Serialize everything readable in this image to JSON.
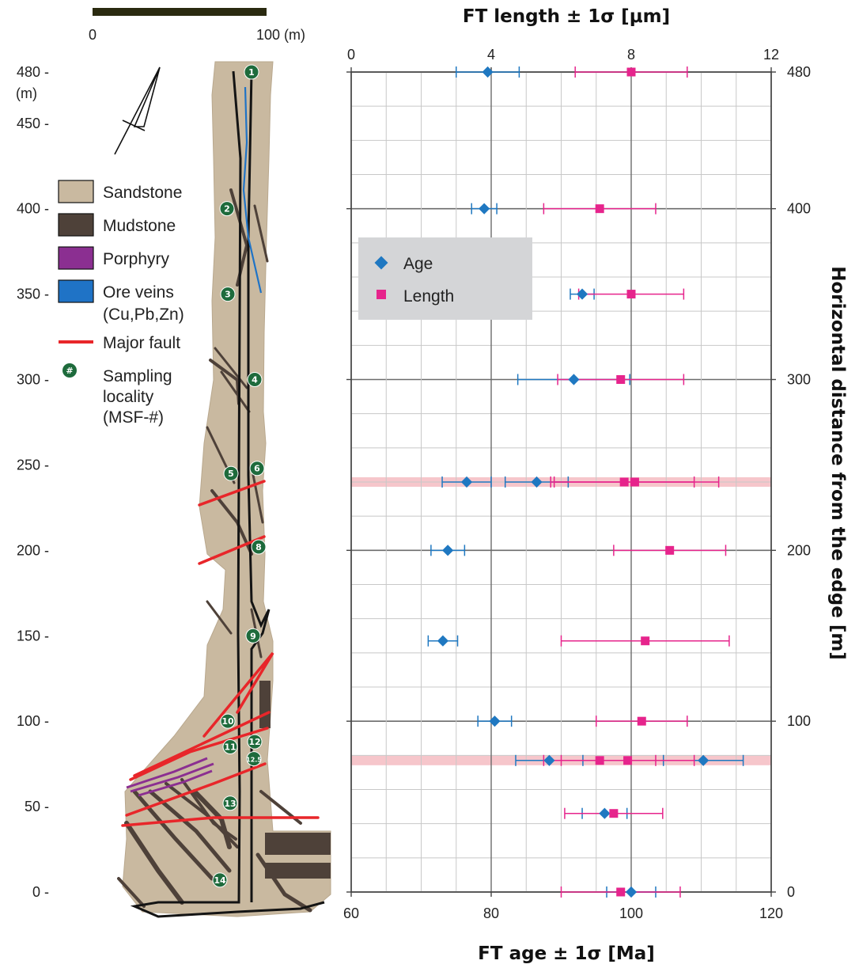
{
  "map": {
    "scale_bar": {
      "start": "0",
      "end": "100 (m)"
    },
    "y_axis_ticks": [
      {
        "label": "480 -",
        "value": 480
      },
      {
        "label": "450 -",
        "value": 450
      },
      {
        "label": "400 -",
        "value": 400
      },
      {
        "label": "350 -",
        "value": 350
      },
      {
        "label": "300 -",
        "value": 300
      },
      {
        "label": "250 -",
        "value": 250
      },
      {
        "label": "200 -",
        "value": 200
      },
      {
        "label": "150 -",
        "value": 150
      },
      {
        "label": "100 -",
        "value": 100
      },
      {
        "label": "50 -",
        "value": 50
      },
      {
        "label": "0 -",
        "value": 0
      }
    ],
    "y_axis_unit": "(m)",
    "legend": [
      {
        "key": "sandstone",
        "label": "Sandstone",
        "color": "#c9b9a0"
      },
      {
        "key": "mudstone",
        "label": "Mudstone",
        "color": "#4e4139"
      },
      {
        "key": "porphyry",
        "label": "Porphyry",
        "color": "#8b2f91"
      },
      {
        "key": "ore",
        "label": "Ore veins",
        "label2": "(Cu,Pb,Zn)",
        "color": "#1f73c6"
      },
      {
        "key": "fault",
        "label": "Major fault",
        "color": "#e8262a"
      },
      {
        "key": "sampling",
        "label": "Sampling",
        "label2": "locality",
        "label3": "(MSF-#)",
        "symbol": "#",
        "color": "#1e6b3c"
      }
    ],
    "samples": [
      {
        "id": "1",
        "distance": 480
      },
      {
        "id": "2",
        "distance": 400
      },
      {
        "id": "3",
        "distance": 350
      },
      {
        "id": "4",
        "distance": 300
      },
      {
        "id": "5",
        "distance": 245
      },
      {
        "id": "6",
        "distance": 248
      },
      {
        "id": "8",
        "distance": 202
      },
      {
        "id": "9",
        "distance": 150
      },
      {
        "id": "10",
        "distance": 100
      },
      {
        "id": "11",
        "distance": 85
      },
      {
        "id": "12",
        "distance": 88
      },
      {
        "id": "12.5",
        "distance": 78
      },
      {
        "id": "13",
        "distance": 52
      },
      {
        "id": "14",
        "distance": 7
      }
    ]
  },
  "chart_data": {
    "type": "scatter",
    "title_top": "FT length ± 1σ [μm]",
    "xlabel": "FT age ± 1σ [Ma]",
    "ylabel": "Horizontal distance from the edge [m]",
    "x_age_lim": [
      60,
      120
    ],
    "x_age_ticks": [
      "60",
      "80",
      "100",
      "120"
    ],
    "x_length_lim": [
      0,
      12
    ],
    "x_length_ticks": [
      "0",
      "4",
      "8",
      "12"
    ],
    "ylim": [
      0,
      480
    ],
    "y_ticks": [
      "0",
      "100",
      "200",
      "300",
      "400",
      "480"
    ],
    "grid": true,
    "legend_position": "top-left",
    "highlight_bands": [
      240,
      77
    ],
    "series": [
      {
        "name": "Age",
        "color": "#1f78c1",
        "marker": "diamond",
        "points": [
          {
            "y": 480,
            "x": 79.5,
            "err": 4.5
          },
          {
            "y": 400,
            "x": 79.0,
            "err": 1.8
          },
          {
            "y": 350,
            "x": 93.0,
            "err": 1.7
          },
          {
            "y": 300,
            "x": 91.8,
            "err": 8.0
          },
          {
            "y": 240,
            "x": 76.5,
            "err": 3.5
          },
          {
            "y": 240,
            "x": 86.5,
            "err": 4.5
          },
          {
            "y": 200,
            "x": 73.8,
            "err": 2.4
          },
          {
            "y": 147,
            "x": 73.1,
            "err": 2.1
          },
          {
            "y": 100,
            "x": 80.5,
            "err": 2.4
          },
          {
            "y": 77,
            "x": 88.3,
            "err": 4.8
          },
          {
            "y": 77,
            "x": 110.3,
            "err": 5.7
          },
          {
            "y": 46,
            "x": 96.2,
            "err": 3.2
          },
          {
            "y": 0,
            "x": 100.0,
            "err": 3.5
          }
        ]
      },
      {
        "name": "Length",
        "color": "#e6248c",
        "marker": "square",
        "points": [
          {
            "y": 480,
            "x": 8.0,
            "err": 1.6
          },
          {
            "y": 400,
            "x": 7.1,
            "err": 1.6
          },
          {
            "y": 350,
            "x": 8.0,
            "err": 1.5
          },
          {
            "y": 300,
            "x": 7.7,
            "err": 1.8
          },
          {
            "y": 240,
            "x": 7.8,
            "err": 2.0
          },
          {
            "y": 240,
            "x": 8.1,
            "err": 2.4
          },
          {
            "y": 200,
            "x": 9.1,
            "err": 1.6
          },
          {
            "y": 147,
            "x": 8.4,
            "err": 2.4
          },
          {
            "y": 100,
            "x": 8.3,
            "err": 1.3
          },
          {
            "y": 77,
            "x": 7.1,
            "err": 1.6
          },
          {
            "y": 77,
            "x": 7.9,
            "err": 1.9
          },
          {
            "y": 46,
            "x": 7.5,
            "err": 1.4
          },
          {
            "y": 0,
            "x": 7.7,
            "err": 1.7
          }
        ]
      }
    ]
  }
}
